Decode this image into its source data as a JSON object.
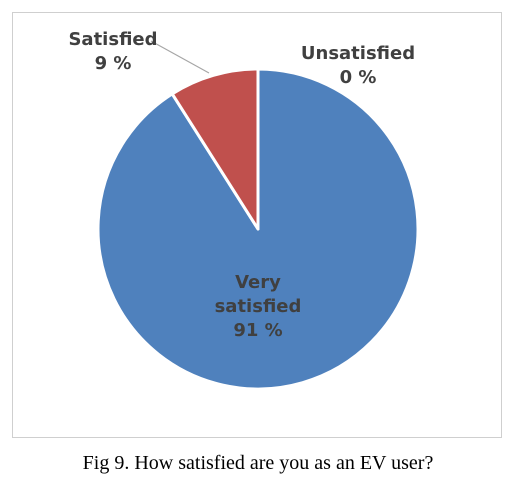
{
  "caption": "Fig 9. How satisfied are you as an EV user?",
  "chart_data": {
    "type": "pie",
    "slices": [
      {
        "label": "Very satisfied",
        "label_lines": [
          "Very",
          "satisfied"
        ],
        "value": 91,
        "display": "91 %",
        "color": "#4f81bd"
      },
      {
        "label": "Satisfied",
        "label_lines": [
          "Satisfied"
        ],
        "value": 9,
        "display": "9 %",
        "color": "#c0504d"
      },
      {
        "label": "Unsatisfied",
        "label_lines": [
          "Unsatisfied"
        ],
        "value": 0,
        "display": "0 %",
        "color": "#9bbb59"
      }
    ],
    "start_angle": "12 o'clock",
    "direction": "clockwise",
    "slice_border_color": "#ffffff"
  }
}
